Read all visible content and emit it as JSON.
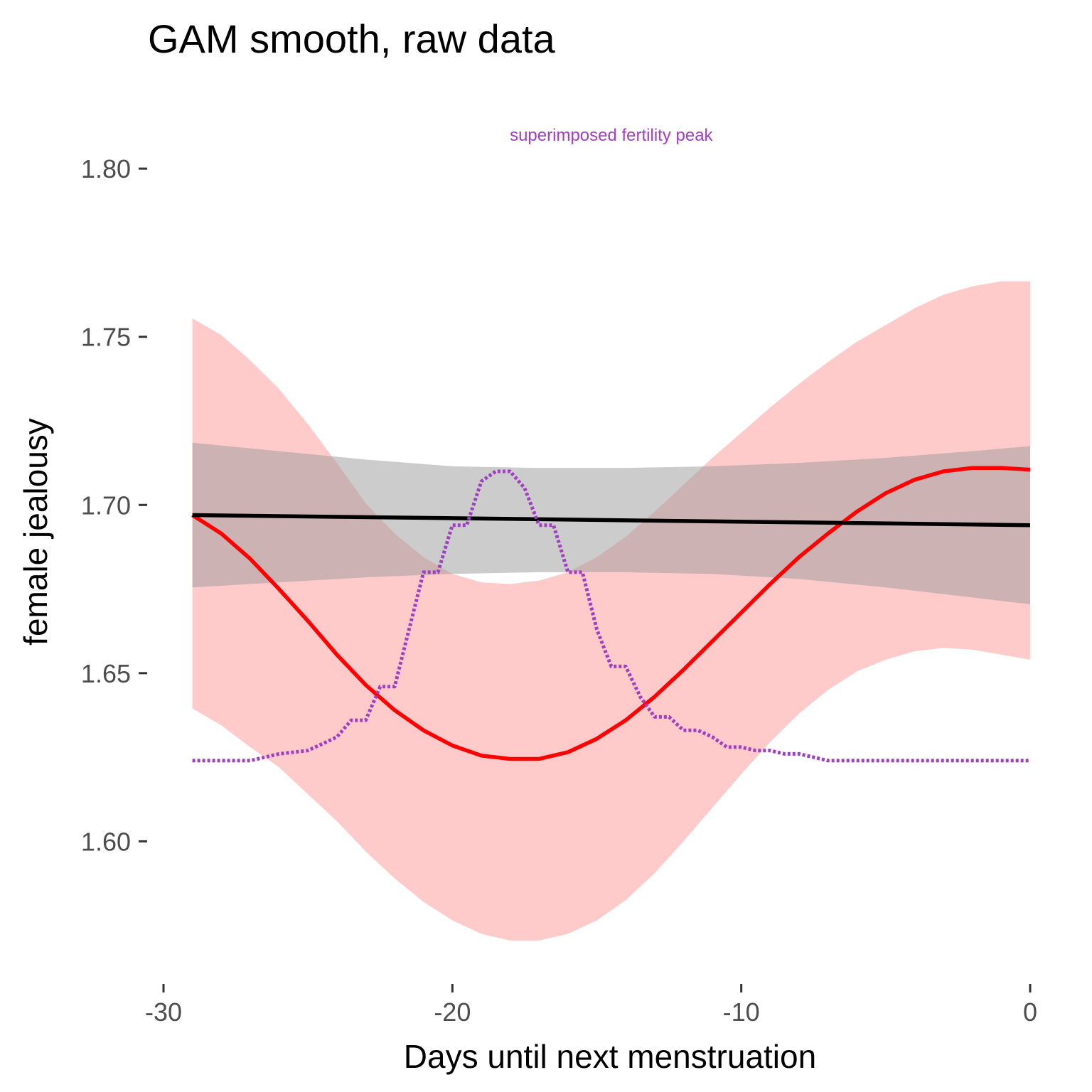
{
  "chart_data": {
    "type": "line",
    "title": "GAM smooth, raw data",
    "xlabel": "Days until next menstruation",
    "ylabel": "female jealousy",
    "xlim": [
      -30,
      0
    ],
    "ylim": [
      1.565,
      1.818
    ],
    "x_ticks": [
      -30,
      -20,
      -10,
      0
    ],
    "x_tick_labels": [
      "-30",
      "-20",
      "-10",
      "0"
    ],
    "y_ticks": [
      1.6,
      1.65,
      1.7,
      1.75,
      1.8
    ],
    "y_tick_labels": [
      "1.60",
      "1.65",
      "1.70",
      "1.75",
      "1.80"
    ],
    "grid": false,
    "legend": "none",
    "annotation": {
      "text": "superimposed fertility peak",
      "x": -14.5,
      "y": 1.81,
      "color": "#a03fbf"
    },
    "series": [
      {
        "style": "band",
        "color": "#ffb3b3",
        "opacity": 0.7,
        "x": [
          -29,
          -28,
          -27,
          -26,
          -25,
          -24,
          -23,
          -22,
          -21,
          -20,
          -19,
          -18,
          -17,
          -16,
          -15,
          -14,
          -13,
          -12,
          -11,
          -10,
          -9,
          -8,
          -7,
          -6,
          -5,
          -4,
          -3,
          -2,
          -1,
          0
        ],
        "lower": [
          1.6395,
          1.6345,
          1.628,
          1.622,
          1.614,
          1.606,
          1.597,
          1.589,
          1.582,
          1.5765,
          1.5725,
          1.5705,
          1.5705,
          1.5725,
          1.5765,
          1.5825,
          1.5905,
          1.6,
          1.61,
          1.62,
          1.6295,
          1.638,
          1.645,
          1.6505,
          1.654,
          1.6565,
          1.6575,
          1.657,
          1.6555,
          1.654
        ],
        "upper": [
          1.7555,
          1.7505,
          1.743,
          1.7345,
          1.724,
          1.7125,
          1.7005,
          1.6915,
          1.6845,
          1.6795,
          1.677,
          1.6765,
          1.6775,
          1.68,
          1.6845,
          1.6905,
          1.698,
          1.706,
          1.714,
          1.7215,
          1.729,
          1.736,
          1.7425,
          1.7485,
          1.7535,
          1.7585,
          1.7625,
          1.765,
          1.7665,
          1.7665
        ]
      },
      {
        "style": "band",
        "color": "#999999",
        "opacity": 0.5,
        "x": [
          -29,
          -26,
          -23,
          -20,
          -17,
          -14,
          -11,
          -8,
          -5,
          -2,
          0
        ],
        "lower": [
          1.6755,
          1.677,
          1.6785,
          1.6795,
          1.68,
          1.68,
          1.6795,
          1.678,
          1.6755,
          1.6725,
          1.6705
        ],
        "upper": [
          1.7185,
          1.716,
          1.7135,
          1.7115,
          1.711,
          1.711,
          1.7115,
          1.7125,
          1.714,
          1.716,
          1.7175
        ]
      },
      {
        "style": "line",
        "color": "#ff0000",
        "x": [
          -29,
          -28,
          -27,
          -26,
          -25,
          -24,
          -23,
          -22,
          -21,
          -20,
          -19,
          -18,
          -17,
          -16,
          -15,
          -14,
          -13,
          -12,
          -11,
          -10,
          -9,
          -8,
          -7,
          -6,
          -5,
          -4,
          -3,
          -2,
          -1,
          0
        ],
        "y": [
          1.697,
          1.6915,
          1.684,
          1.675,
          1.6655,
          1.6555,
          1.6465,
          1.639,
          1.633,
          1.6285,
          1.6255,
          1.6245,
          1.6245,
          1.6265,
          1.6305,
          1.636,
          1.643,
          1.651,
          1.6595,
          1.668,
          1.6765,
          1.6845,
          1.6915,
          1.698,
          1.7035,
          1.7075,
          1.71,
          1.711,
          1.711,
          1.7105
        ]
      },
      {
        "style": "line",
        "color": "#000000",
        "x": [
          -29,
          0
        ],
        "y": [
          1.697,
          1.694
        ]
      },
      {
        "style": "dotted",
        "color": "#a03fbf",
        "x": [
          -29,
          -28,
          -27,
          -26,
          -25,
          -24,
          -23.5,
          -23,
          -22.5,
          -22,
          -21.5,
          -21,
          -20.5,
          -20,
          -19.5,
          -19,
          -18.5,
          -18,
          -17.5,
          -17,
          -16.5,
          -16,
          -15.5,
          -15,
          -14.5,
          -14,
          -13.5,
          -13,
          -12.5,
          -12,
          -11.5,
          -11,
          -10.5,
          -10,
          -9.5,
          -9,
          -8.5,
          -8,
          -7.5,
          -7,
          -6.5,
          -6,
          -5.5,
          -5,
          -4.5,
          -4,
          -3,
          -2,
          -1,
          0
        ],
        "y": [
          1.624,
          1.624,
          1.624,
          1.626,
          1.627,
          1.631,
          1.636,
          1.636,
          1.646,
          1.646,
          1.663,
          1.68,
          1.68,
          1.694,
          1.694,
          1.707,
          1.71,
          1.71,
          1.705,
          1.694,
          1.694,
          1.68,
          1.68,
          1.663,
          1.652,
          1.652,
          1.643,
          1.637,
          1.637,
          1.633,
          1.633,
          1.631,
          1.628,
          1.628,
          1.627,
          1.627,
          1.626,
          1.626,
          1.625,
          1.624,
          1.624,
          1.624,
          1.624,
          1.624,
          1.624,
          1.624,
          1.624,
          1.624,
          1.624,
          1.624
        ]
      }
    ]
  }
}
